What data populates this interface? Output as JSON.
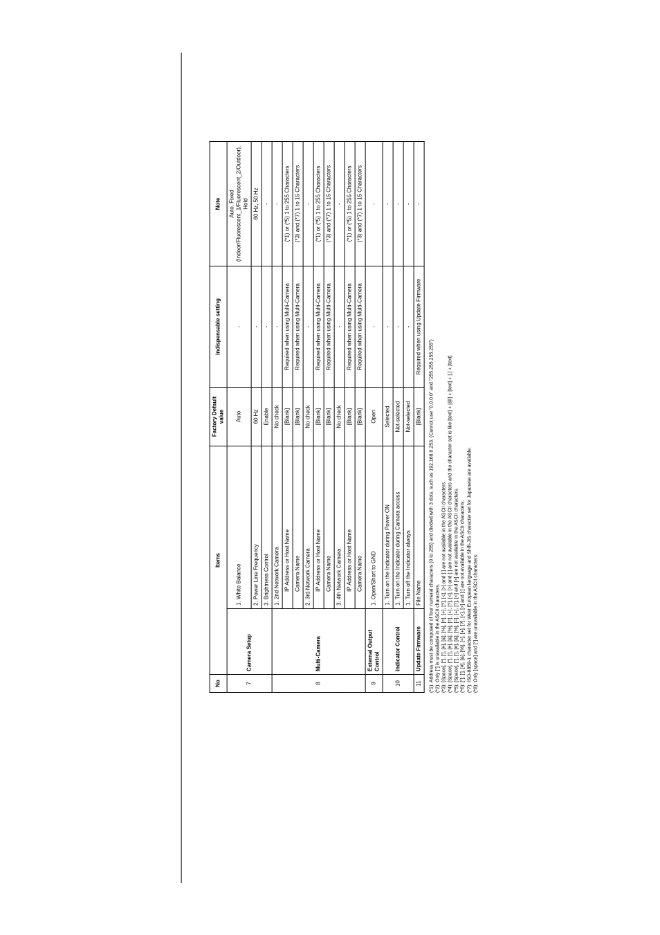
{
  "headers": {
    "no": "No",
    "items": "Items",
    "factory_default": "Factory Default value",
    "indispensable": "Indispensable setting",
    "note": "Note"
  },
  "rows": {
    "r7": {
      "no": "7",
      "cat": "Camera Setup",
      "i1": "1. White Balance",
      "d1": "Auto",
      "s1": "-",
      "n1": "Auto, Fixed (Indoor/Fluorescent_1/Fluorescent_2/Outdoor), Hold",
      "i2": "2. Power Line Frequency",
      "d2": "60 Hz",
      "s2": "-",
      "n2": "60 Hz, 50 Hz",
      "i3": "3. Brightness Control",
      "d3": "Enable",
      "s3": "-",
      "n3": "-"
    },
    "r8": {
      "no": "8",
      "cat": "Multi-Camera",
      "i1": "1. 2nd Network Camera",
      "d1": "No check",
      "s1": "-",
      "n1": "-",
      "i2": "IP Address or Host Name",
      "d2": "[Blank]",
      "s2": "Required when using Multi-Camera",
      "n2": "(*1) or (*5) 1 to 255 Characters",
      "i3": "Camera Name",
      "d3": "[Blank]",
      "s3": "Required when using Multi-Camera",
      "n3": "(*3) and (*7) 1 to 15 Characters",
      "i4": "2. 3rd Network Camera",
      "d4": "No check",
      "s4": "-",
      "n4": "-",
      "i5": "IP Address or Host Name",
      "d5": "[Blank]",
      "s5": "Required when using Multi-Camera",
      "n5": "(*1) or (*5) 1 to 255 Characters",
      "i6": "Camera Name",
      "d6": "[Blank]",
      "s6": "Required when using Multi-Camera",
      "n6": "(*3) and (*7) 1 to 15 Characters",
      "i7": "3. 4th Network Camera",
      "d7": "No check",
      "s7": "-",
      "n7": "-",
      "i8": "IP Address or Host Name",
      "d8": "[Blank]",
      "s8": "Required when using Multi-Camera",
      "n8": "(*1) or (*5) 1 to 255 Characters",
      "i9": "Camera Name",
      "d9": "[Blank]",
      "s9": "Required when using Multi-Camera",
      "n9": "(*3) and (*7) 1 to 15 Characters"
    },
    "r9": {
      "no": "9",
      "cat": "External Output Control",
      "i1": "1. Open/Short to GND",
      "d1": "Open",
      "s1": "-",
      "n1": "-"
    },
    "r10": {
      "no": "10",
      "cat": "Indicator Control",
      "i1": "1. Turn on the Indicator during Power ON",
      "d1": "Selected",
      "s1": "-",
      "n1": "-",
      "i2": "1. Turn on the Indicator during Camera access",
      "d2": "Not-selected",
      "s2": "-",
      "n2": "-",
      "i3": "1. Turn off the Indicator always",
      "d3": "Not-selected",
      "s3": "-",
      "n3": "-"
    },
    "r11": {
      "no": "11",
      "cat": "Update Firmware",
      "i1": "File Name",
      "d1": "[Blank]",
      "s1": "Required when using Update Firmware",
      "n1": "-"
    }
  },
  "footnotes": {
    "f1": "(*1): Address must be composed of four numeral characters (0 to 255) and divided with 3 dots, such as 192.168.0.253. (Cannot use \"0.0.0.0\" and \"255.255.255.255\")",
    "f2": "(*2): Only [\"] is unavailable in the ASCII characters.",
    "f3": "(*3): [Space], [\"], [’], [#], [&], [%], [=], [+], [?], [<], [>] and [:] are not available in the ASCII characters.",
    "f4": "(*4): [Space], [\"], [’], [#], [&], [%], [=], [+], [?], [<], [>] and [:] are not available in the ASCII characters and the character set is like [text] + [@] + [text] + [.] + [text]",
    "f5": "(*5): [Space], [\"], [’], [#], [&], [%], [=], [+], [?], [<] and [>] are not available in the ASCII characters.",
    "f6": "(*6): [\"], [’], [#], [&], [%], [=], [+], [?], [<], [>] and [:] are not available in the ASCII characters.",
    "f7": "(*7): ISO-8859-1 character set for West European language and Shift-JIS character set for Japanese are available.",
    "f8": "(*8): Only [space] and [\"] are unavailable in the ASCII characters."
  }
}
